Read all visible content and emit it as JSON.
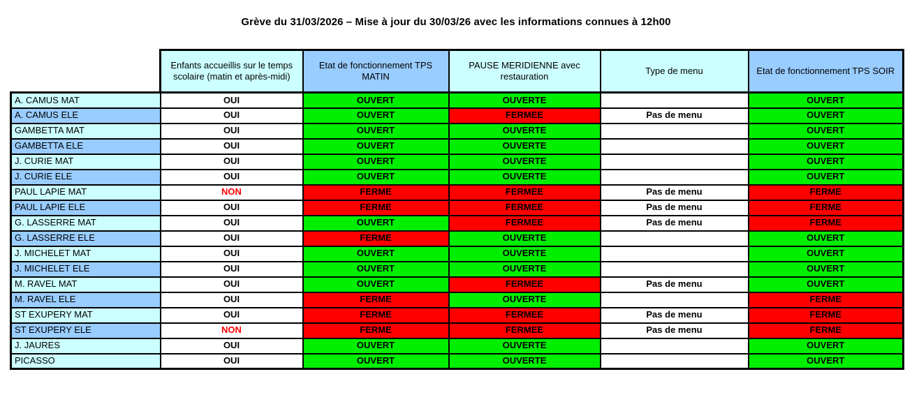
{
  "title": "Grève du 31/03/2026 – Mise à jour du 30/03/26 avec les informations connues à 12h00",
  "colors": {
    "open_green": "#00EE00",
    "closed_red": "#FF0000",
    "row_cyan": "#CCFFFF",
    "row_blue": "#99CCFF"
  },
  "table": {
    "headers": [
      {
        "label": "Enfants accueillis sur le temps scolaire (matin et après-midi)",
        "variant": "cyan"
      },
      {
        "label": "Etat de fonctionnement TPS MATIN",
        "variant": "blue"
      },
      {
        "label": "PAUSE MERIDIENNE avec restauration",
        "variant": "cyan"
      },
      {
        "label": "Type de menu",
        "variant": "cyan"
      },
      {
        "label": "Etat de fonctionnement TPS SOIR",
        "variant": "blue"
      }
    ],
    "rows": [
      {
        "school": "A. CAMUS MAT",
        "row_variant": "mat",
        "children_hosted": "OUI",
        "tps_matin": {
          "text": "OUVERT",
          "status": "open"
        },
        "pause_meridienne": {
          "text": "OUVERTE",
          "status": "open"
        },
        "type_menu": "",
        "tps_soir": {
          "text": "OUVERT",
          "status": "open"
        }
      },
      {
        "school": "A. CAMUS ELE",
        "row_variant": "ele",
        "children_hosted": "OUI",
        "tps_matin": {
          "text": "OUVERT",
          "status": "open"
        },
        "pause_meridienne": {
          "text": "FERMEE",
          "status": "closed"
        },
        "type_menu": "Pas de menu",
        "tps_soir": {
          "text": "OUVERT",
          "status": "open"
        }
      },
      {
        "school": "GAMBETTA MAT",
        "row_variant": "mat",
        "children_hosted": "OUI",
        "tps_matin": {
          "text": "OUVERT",
          "status": "open"
        },
        "pause_meridienne": {
          "text": "OUVERTE",
          "status": "open"
        },
        "type_menu": "",
        "tps_soir": {
          "text": "OUVERT",
          "status": "open"
        }
      },
      {
        "school": "GAMBETTA ELE",
        "row_variant": "ele",
        "children_hosted": "OUI",
        "tps_matin": {
          "text": "OUVERT",
          "status": "open"
        },
        "pause_meridienne": {
          "text": "OUVERTE",
          "status": "open"
        },
        "type_menu": "",
        "tps_soir": {
          "text": "OUVERT",
          "status": "open"
        }
      },
      {
        "school": "J. CURIE MAT",
        "row_variant": "mat",
        "children_hosted": "OUI",
        "tps_matin": {
          "text": "OUVERT",
          "status": "open"
        },
        "pause_meridienne": {
          "text": "OUVERTE",
          "status": "open"
        },
        "type_menu": "",
        "tps_soir": {
          "text": "OUVERT",
          "status": "open"
        }
      },
      {
        "school": "J. CURIE ELE",
        "row_variant": "ele",
        "children_hosted": "OUI",
        "tps_matin": {
          "text": "OUVERT",
          "status": "open"
        },
        "pause_meridienne": {
          "text": "OUVERTE",
          "status": "open"
        },
        "type_menu": "",
        "tps_soir": {
          "text": "OUVERT",
          "status": "open"
        }
      },
      {
        "school": "PAUL LAPIE MAT",
        "row_variant": "mat",
        "children_hosted": "NON",
        "tps_matin": {
          "text": "FERME",
          "status": "closed"
        },
        "pause_meridienne": {
          "text": "FERMEE",
          "status": "closed"
        },
        "type_menu": "Pas de menu",
        "tps_soir": {
          "text": "FERME",
          "status": "closed"
        }
      },
      {
        "school": "PAUL LAPIE ELE",
        "row_variant": "ele",
        "children_hosted": "OUI",
        "tps_matin": {
          "text": "FERME",
          "status": "closed"
        },
        "pause_meridienne": {
          "text": "FERMEE",
          "status": "closed"
        },
        "type_menu": "Pas de menu",
        "tps_soir": {
          "text": "FERME",
          "status": "closed"
        }
      },
      {
        "school": "G. LASSERRE MAT",
        "row_variant": "mat",
        "children_hosted": "OUI",
        "tps_matin": {
          "text": "OUVERT",
          "status": "open"
        },
        "pause_meridienne": {
          "text": "FERMEE",
          "status": "closed"
        },
        "type_menu": "Pas de menu",
        "tps_soir": {
          "text": "FERME",
          "status": "closed"
        }
      },
      {
        "school": "G. LASSERRE ELE",
        "row_variant": "ele",
        "children_hosted": "OUI",
        "tps_matin": {
          "text": "FERME",
          "status": "closed"
        },
        "pause_meridienne": {
          "text": "OUVERTE",
          "status": "open"
        },
        "type_menu": "",
        "tps_soir": {
          "text": "OUVERT",
          "status": "open"
        }
      },
      {
        "school": "J. MICHELET MAT",
        "row_variant": "mat",
        "children_hosted": "OUI",
        "tps_matin": {
          "text": "OUVERT",
          "status": "open"
        },
        "pause_meridienne": {
          "text": "OUVERTE",
          "status": "open"
        },
        "type_menu": "",
        "tps_soir": {
          "text": "OUVERT",
          "status": "open"
        }
      },
      {
        "school": "J. MICHELET ELE",
        "row_variant": "ele",
        "children_hosted": "OUI",
        "tps_matin": {
          "text": "OUVERT",
          "status": "open"
        },
        "pause_meridienne": {
          "text": "OUVERTE",
          "status": "open"
        },
        "type_menu": "",
        "tps_soir": {
          "text": "OUVERT",
          "status": "open"
        }
      },
      {
        "school": "M. RAVEL MAT",
        "row_variant": "mat",
        "children_hosted": "OUI",
        "tps_matin": {
          "text": "OUVERT",
          "status": "open"
        },
        "pause_meridienne": {
          "text": "FERMEE",
          "status": "closed"
        },
        "type_menu": "Pas de menu",
        "tps_soir": {
          "text": "OUVERT",
          "status": "open"
        }
      },
      {
        "school": "M. RAVEL ELE",
        "row_variant": "ele",
        "children_hosted": "OUI",
        "tps_matin": {
          "text": "FERME",
          "status": "closed"
        },
        "pause_meridienne": {
          "text": "OUVERTE",
          "status": "open"
        },
        "type_menu": "",
        "tps_soir": {
          "text": "FERME",
          "status": "closed"
        }
      },
      {
        "school": "ST EXUPERY MAT",
        "row_variant": "mat",
        "children_hosted": "OUI",
        "tps_matin": {
          "text": "FERME",
          "status": "closed"
        },
        "pause_meridienne": {
          "text": "FERMEE",
          "status": "closed"
        },
        "type_menu": "Pas de menu",
        "tps_soir": {
          "text": "FERME",
          "status": "closed"
        }
      },
      {
        "school": "ST EXUPERY ELE",
        "row_variant": "ele",
        "children_hosted": "NON",
        "tps_matin": {
          "text": "FERME",
          "status": "closed"
        },
        "pause_meridienne": {
          "text": "FERMEE",
          "status": "closed"
        },
        "type_menu": "Pas de menu",
        "tps_soir": {
          "text": "FERME",
          "status": "closed"
        }
      },
      {
        "school": "J. JAURES",
        "row_variant": "mat",
        "children_hosted": "OUI",
        "tps_matin": {
          "text": "OUVERT",
          "status": "open"
        },
        "pause_meridienne": {
          "text": "OUVERTE",
          "status": "open"
        },
        "type_menu": "",
        "tps_soir": {
          "text": "OUVERT",
          "status": "open"
        }
      },
      {
        "school": "PICASSO",
        "row_variant": "mat",
        "children_hosted": "OUI",
        "tps_matin": {
          "text": "OUVERT",
          "status": "open"
        },
        "pause_meridienne": {
          "text": "OUVERTE",
          "status": "open"
        },
        "type_menu": "",
        "tps_soir": {
          "text": "OUVERT",
          "status": "open"
        }
      }
    ]
  }
}
